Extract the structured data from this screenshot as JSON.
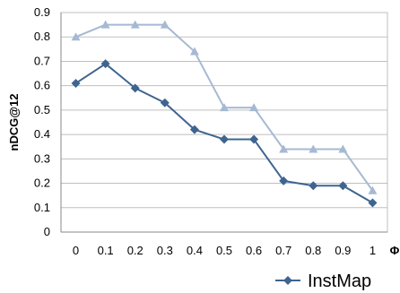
{
  "chart_data": {
    "type": "line",
    "title": "",
    "xlabel": "Φ",
    "ylabel": "nDCG@12",
    "categories": [
      "0",
      "0.1",
      "0.2",
      "0.3",
      "0.4",
      "0.5",
      "0.6",
      "0.7",
      "0.8",
      "0.9",
      "1"
    ],
    "ylim": [
      0,
      0.9
    ],
    "yticks": [
      "0",
      "0.1",
      "0.2",
      "0.3",
      "0.4",
      "0.5",
      "0.6",
      "0.7",
      "0.8",
      "0.9"
    ],
    "grid": true,
    "legend_position": "bottom-right",
    "series": [
      {
        "name": "",
        "color": "#a6b9d3",
        "marker": "triangle",
        "values": [
          0.8,
          0.85,
          0.85,
          0.85,
          0.74,
          0.51,
          0.51,
          0.34,
          0.34,
          0.34,
          0.17
        ]
      },
      {
        "name": "InstMap",
        "color": "#3e648f",
        "marker": "diamond",
        "values": [
          0.61,
          0.69,
          0.59,
          0.53,
          0.42,
          0.38,
          0.38,
          0.21,
          0.19,
          0.19,
          0.12
        ]
      }
    ]
  }
}
